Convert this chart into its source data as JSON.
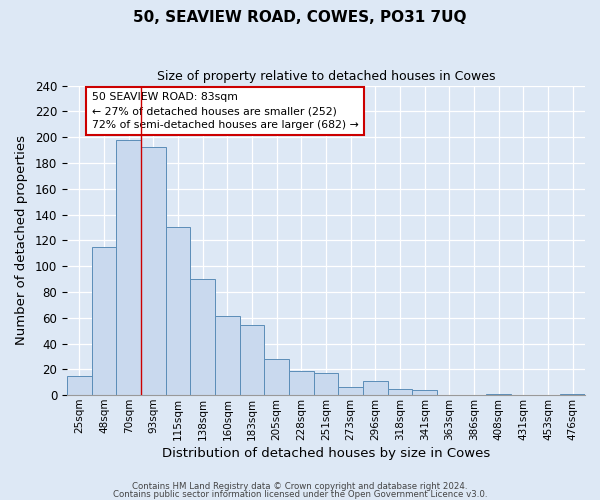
{
  "title": "50, SEAVIEW ROAD, COWES, PO31 7UQ",
  "subtitle": "Size of property relative to detached houses in Cowes",
  "xlabel": "Distribution of detached houses by size in Cowes",
  "ylabel": "Number of detached properties",
  "bin_labels": [
    "25sqm",
    "48sqm",
    "70sqm",
    "93sqm",
    "115sqm",
    "138sqm",
    "160sqm",
    "183sqm",
    "205sqm",
    "228sqm",
    "251sqm",
    "273sqm",
    "296sqm",
    "318sqm",
    "341sqm",
    "363sqm",
    "386sqm",
    "408sqm",
    "431sqm",
    "453sqm",
    "476sqm"
  ],
  "bar_values": [
    15,
    115,
    198,
    192,
    130,
    90,
    61,
    54,
    28,
    19,
    17,
    6,
    11,
    5,
    4,
    0,
    0,
    1,
    0,
    0,
    1
  ],
  "bar_color": "#c9d9ee",
  "bar_edge_color": "#5b8db8",
  "vline_color": "#cc0000",
  "annotation_text": "50 SEAVIEW ROAD: 83sqm\n← 27% of detached houses are smaller (252)\n72% of semi-detached houses are larger (682) →",
  "annotation_box_color": "#ffffff",
  "annotation_box_edge": "#cc0000",
  "ylim": [
    0,
    240
  ],
  "yticks": [
    0,
    20,
    40,
    60,
    80,
    100,
    120,
    140,
    160,
    180,
    200,
    220,
    240
  ],
  "footer1": "Contains HM Land Registry data © Crown copyright and database right 2024.",
  "footer2": "Contains public sector information licensed under the Open Government Licence v3.0.",
  "bg_color": "#dde8f5",
  "plot_bg_color": "#dde8f5"
}
